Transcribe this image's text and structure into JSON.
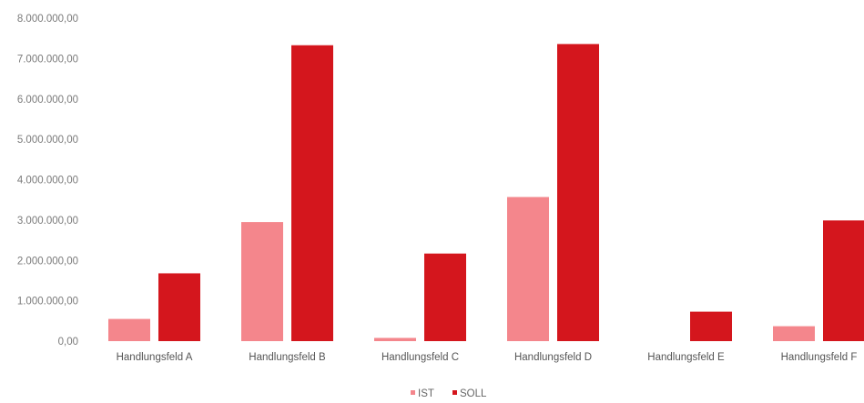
{
  "chart_data": {
    "type": "bar",
    "categories": [
      "Handlungsfeld A",
      "Handlungsfeld B",
      "Handlungsfeld C",
      "Handlungsfeld D",
      "Handlungsfeld E",
      "Handlungsfeld F"
    ],
    "series": [
      {
        "name": "IST",
        "color": "#f4868c",
        "values": [
          550000,
          2950000,
          80000,
          3570000,
          0,
          370000
        ]
      },
      {
        "name": "SOLL",
        "color": "#d4161d",
        "values": [
          1680000,
          7330000,
          2170000,
          7360000,
          730000,
          2990000
        ]
      }
    ],
    "y_ticks": [
      "0,00",
      "1.000.000,00",
      "2.000.000,00",
      "3.000.000,00",
      "4.000.000,00",
      "5.000.000,00",
      "6.000.000,00",
      "7.000.000,00",
      "8.000.000,00"
    ],
    "ylim": [
      0,
      8000000
    ],
    "grid": false,
    "legend_position": "bottom-center",
    "title": "",
    "xlabel": "",
    "ylabel": ""
  }
}
